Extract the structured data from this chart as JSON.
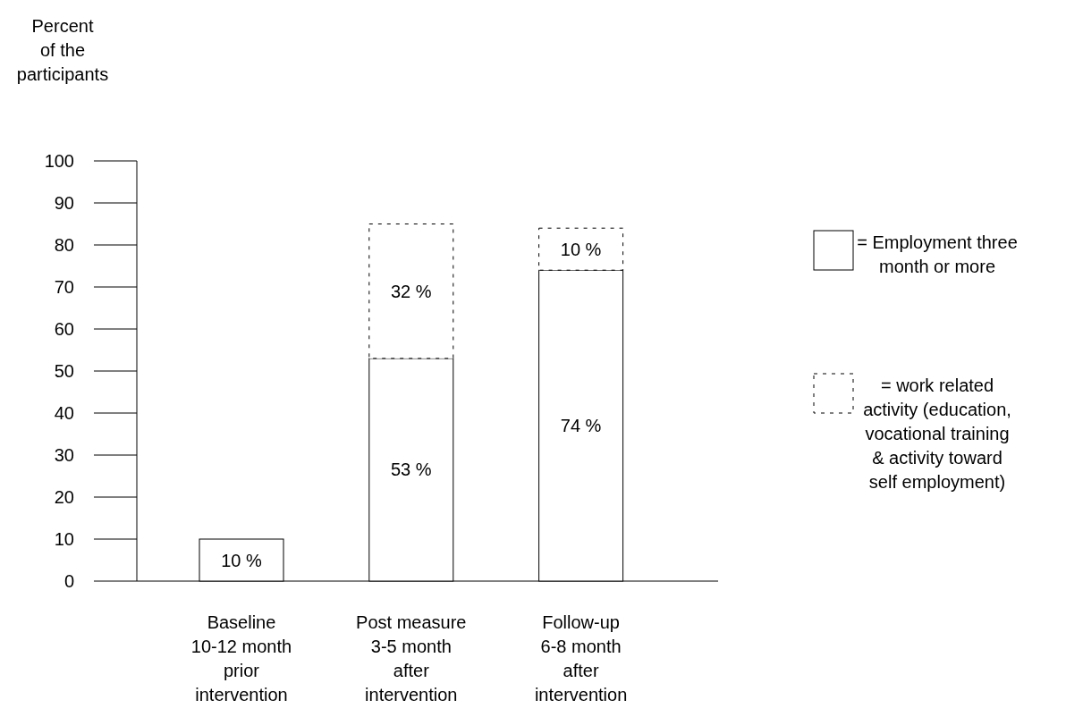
{
  "chart_data": {
    "type": "bar",
    "stacked": true,
    "ylabel": "Percent\nof the\nparticipants",
    "categories": [
      "Baseline\n10-12 month\nprior\nintervention",
      "Post measure\n3-5 month\nafter\nintervention",
      "Follow-up\n6-8 month\nafter\nintervention"
    ],
    "ylim": [
      0,
      100
    ],
    "yticks": [
      0,
      10,
      20,
      30,
      40,
      50,
      60,
      70,
      80,
      90,
      100
    ],
    "grid": false,
    "legend": "right",
    "series": [
      {
        "name": "= Employment three month or more",
        "color": "#ffffff",
        "line_style": "solid",
        "values": [
          10,
          53,
          74
        ],
        "value_labels": [
          "10 %",
          "53 %",
          "74 %"
        ]
      },
      {
        "name": "= work related activity (education, vocational training & activity toward self employment)",
        "color": "#ffffff",
        "line_style": "dashed",
        "values": [
          null,
          32,
          10
        ],
        "value_labels": [
          null,
          "32 %",
          "10 %"
        ]
      }
    ]
  }
}
